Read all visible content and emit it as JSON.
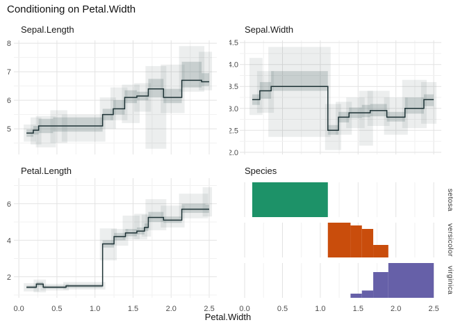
{
  "title": "Conditioning on Petal.Width",
  "x_axis_label": "Petal.Width",
  "colors": {
    "line": "#1c3134",
    "band_outer": "rgba(105,125,125,0.13)",
    "band_inner": "rgba(105,125,125,0.27)",
    "grid_major": "#e2e2e2",
    "grid_minor": "#f1f1f1",
    "tick_text": "#4d4d4d",
    "setosa": "#1d9268",
    "versicolor": "#c94d0c",
    "virginica": "#6660a8"
  },
  "chart_data": [
    {
      "type": "line",
      "line_style": "step",
      "title": "Sepal.Length",
      "x_var": "Petal.Width",
      "xlim": [
        0.0,
        2.5
      ],
      "ylim": [
        4.1,
        8.1
      ],
      "x_ticks": {
        "major": [
          0,
          0.5,
          1.0,
          1.5,
          2.0,
          2.5
        ],
        "minor": [
          0.25,
          0.75,
          1.25,
          1.75,
          2.25
        ],
        "labels": [
          "0.0",
          "0.5",
          "1.0",
          "1.5",
          "2.0",
          "2.5"
        ]
      },
      "y_ticks": {
        "major": [
          5,
          6,
          7,
          8
        ],
        "minor": [
          4.5,
          5.5,
          6.5,
          7.5
        ],
        "labels": [
          "5",
          "6",
          "7",
          "8"
        ]
      },
      "show_x_labels": false,
      "segment_format": "[x0, x1, y, outer_band_lo, outer_band_hi, inner_band_lo, inner_band_hi]",
      "segments": [
        [
          0.1,
          0.19,
          4.85,
          4.55,
          5.15,
          4.72,
          4.98
        ],
        [
          0.19,
          0.26,
          4.95,
          4.45,
          5.4,
          4.8,
          5.1
        ],
        [
          0.26,
          0.45,
          5.1,
          4.35,
          5.45,
          4.85,
          5.35
        ],
        [
          0.45,
          0.6,
          5.1,
          4.5,
          5.65,
          4.9,
          5.4
        ],
        [
          0.6,
          1.1,
          5.1,
          4.55,
          5.5,
          4.9,
          5.4
        ],
        [
          1.1,
          1.24,
          5.5,
          5.0,
          6.1,
          5.3,
          5.7
        ],
        [
          1.24,
          1.39,
          5.7,
          5.3,
          6.45,
          5.5,
          6.0
        ],
        [
          1.39,
          1.55,
          6.1,
          5.2,
          6.55,
          5.9,
          6.35
        ],
        [
          1.55,
          1.7,
          6.15,
          5.6,
          6.6,
          6.0,
          6.3
        ],
        [
          1.7,
          1.9,
          6.4,
          4.3,
          7.2,
          6.1,
          6.75
        ],
        [
          1.9,
          2.14,
          6.1,
          5.55,
          7.25,
          5.9,
          6.4
        ],
        [
          2.14,
          2.4,
          6.7,
          6.3,
          7.9,
          6.45,
          7.35
        ],
        [
          2.4,
          2.5,
          6.65,
          6.35,
          7.7,
          6.5,
          6.95
        ]
      ]
    },
    {
      "type": "line",
      "line_style": "step",
      "title": "Sepal.Width",
      "x_var": "Petal.Width",
      "xlim": [
        0.0,
        2.5
      ],
      "ylim": [
        1.95,
        4.55
      ],
      "x_ticks": {
        "major": [
          0,
          0.5,
          1.0,
          1.5,
          2.0,
          2.5
        ],
        "minor": [
          0.25,
          0.75,
          1.25,
          1.75,
          2.25
        ],
        "labels": [
          "0.0",
          "0.5",
          "1.0",
          "1.5",
          "2.0",
          "2.5"
        ]
      },
      "y_ticks": {
        "major": [
          2.0,
          2.5,
          3.0,
          3.5,
          4.0,
          4.5
        ],
        "minor": [
          2.25,
          2.75,
          3.25,
          3.75,
          4.25
        ],
        "labels": [
          "2.0",
          "2.5",
          "3.0",
          "3.5",
          "4.0",
          "4.5"
        ]
      },
      "show_x_labels": false,
      "segment_format": "[x0, x1, y, outer_band_lo, outer_band_hi, inner_band_lo, inner_band_hi]",
      "segments": [
        [
          0.1,
          0.2,
          3.2,
          2.85,
          4.15,
          3.08,
          3.32
        ],
        [
          0.2,
          0.35,
          3.4,
          2.9,
          3.85,
          3.22,
          3.6
        ],
        [
          0.35,
          1.1,
          3.5,
          2.35,
          4.4,
          3.4,
          3.85
        ],
        [
          1.1,
          1.24,
          2.5,
          2.05,
          3.1,
          2.4,
          2.62
        ],
        [
          1.24,
          1.38,
          2.8,
          2.4,
          3.15,
          2.68,
          2.92
        ],
        [
          1.38,
          1.55,
          2.9,
          2.55,
          3.25,
          2.78,
          3.02
        ],
        [
          1.55,
          1.66,
          2.9,
          2.15,
          3.4,
          2.8,
          3.08
        ],
        [
          1.66,
          1.88,
          2.95,
          2.6,
          3.4,
          2.82,
          3.1
        ],
        [
          1.88,
          2.12,
          2.8,
          2.4,
          3.25,
          2.7,
          2.92
        ],
        [
          2.12,
          2.37,
          3.0,
          2.55,
          3.65,
          2.88,
          3.25
        ],
        [
          2.37,
          2.5,
          3.2,
          2.65,
          3.6,
          3.05,
          3.32
        ]
      ]
    },
    {
      "type": "line",
      "line_style": "step",
      "title": "Petal.Length",
      "x_var": "Petal.Width",
      "xlim": [
        0.0,
        2.5
      ],
      "ylim": [
        0.85,
        7.4
      ],
      "x_ticks": {
        "major": [
          0,
          0.5,
          1.0,
          1.5,
          2.0,
          2.5
        ],
        "minor": [
          0.25,
          0.75,
          1.25,
          1.75,
          2.25
        ],
        "labels": [
          "0.0",
          "0.5",
          "1.0",
          "1.5",
          "2.0",
          "2.5"
        ]
      },
      "y_ticks": {
        "major": [
          2,
          4,
          6
        ],
        "minor": [
          1,
          3,
          5,
          7
        ],
        "labels": [
          "2",
          "4",
          "6"
        ]
      },
      "show_x_labels": true,
      "segment_format": "[x0, x1, y, outer_band_lo, outer_band_hi, inner_band_lo, inner_band_hi]",
      "segments": [
        [
          0.1,
          0.23,
          1.43,
          1.2,
          1.65,
          1.35,
          1.52
        ],
        [
          0.23,
          0.32,
          1.6,
          1.15,
          1.85,
          1.48,
          1.72
        ],
        [
          0.32,
          0.62,
          1.43,
          1.25,
          1.62,
          1.35,
          1.52
        ],
        [
          0.62,
          1.1,
          1.5,
          1.3,
          1.72,
          1.4,
          1.6
        ],
        [
          1.1,
          1.25,
          3.8,
          2.9,
          4.65,
          3.6,
          4.0
        ],
        [
          1.25,
          1.4,
          4.2,
          3.7,
          4.62,
          4.0,
          4.4
        ],
        [
          1.4,
          1.55,
          4.4,
          4.05,
          5.35,
          4.22,
          4.62
        ],
        [
          1.55,
          1.65,
          4.5,
          4.05,
          5.45,
          4.32,
          4.7
        ],
        [
          1.65,
          1.7,
          4.7,
          4.2,
          5.4,
          4.5,
          4.92
        ],
        [
          1.7,
          1.9,
          5.25,
          4.55,
          6.25,
          5.0,
          5.55
        ],
        [
          1.9,
          2.14,
          5.1,
          4.7,
          5.9,
          4.95,
          5.3
        ],
        [
          2.14,
          2.45,
          5.7,
          5.2,
          6.55,
          5.5,
          6.0
        ],
        [
          2.45,
          2.5,
          5.7,
          5.3,
          6.9,
          5.5,
          5.95
        ]
      ]
    },
    {
      "type": "bar",
      "title": "Species",
      "x_var": "Petal.Width",
      "xlim": [
        0.0,
        2.5
      ],
      "x_ticks": {
        "major": [
          0,
          0.5,
          1.0,
          1.5,
          2.0,
          2.5
        ],
        "minor": [
          0.25,
          0.75,
          1.25,
          1.75,
          2.25
        ],
        "labels": [
          "0.0",
          "0.5",
          "1.0",
          "1.5",
          "2.0",
          "2.5"
        ]
      },
      "show_x_labels": true,
      "bar_format": "[x0, x1, height_fraction_of_facet]",
      "facets": [
        {
          "name": "setosa",
          "color": "#1d9268",
          "bars": [
            [
              0.1,
              1.1,
              1.0
            ]
          ]
        },
        {
          "name": "versicolor",
          "color": "#c94d0c",
          "bars": [
            [
              1.1,
              1.4,
              1.0
            ],
            [
              1.4,
              1.55,
              0.92
            ],
            [
              1.55,
              1.7,
              0.82
            ],
            [
              1.7,
              1.9,
              0.36
            ]
          ]
        },
        {
          "name": "virginica",
          "color": "#6660a8",
          "bars": [
            [
              1.4,
              1.55,
              0.12
            ],
            [
              1.55,
              1.7,
              0.21
            ],
            [
              1.7,
              1.9,
              0.74
            ],
            [
              1.9,
              2.5,
              1.0
            ]
          ]
        }
      ]
    }
  ]
}
